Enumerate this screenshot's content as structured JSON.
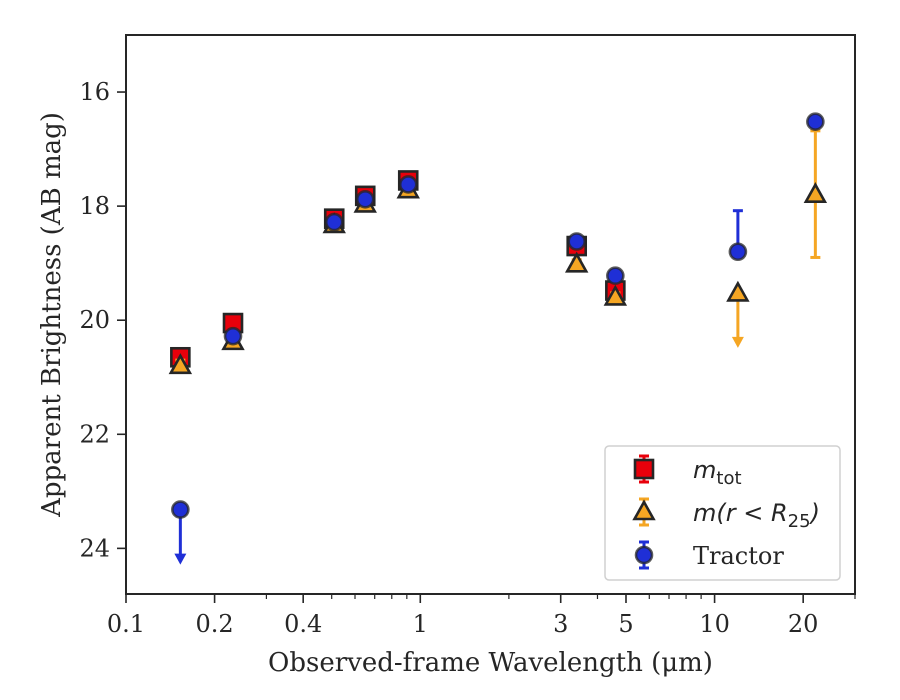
{
  "chart_data": {
    "type": "scatter",
    "title": "",
    "xlabel": "Observed-frame Wavelength (μm)",
    "ylabel": "Apparent Brightness (AB mag)",
    "xscale": "log",
    "xlim": [
      0.1,
      30
    ],
    "ylim": [
      24.8,
      15
    ],
    "y_inverted": true,
    "x_ticks": [
      0.1,
      0.2,
      0.4,
      1,
      3,
      5,
      10,
      20
    ],
    "x_tick_labels": [
      "0.1",
      "0.2",
      "0.4",
      "1",
      "3",
      "5",
      "10",
      "20"
    ],
    "y_ticks": [
      16,
      18,
      20,
      22,
      24
    ],
    "y_tick_labels": [
      "16",
      "18",
      "20",
      "22",
      "24"
    ],
    "grid": false,
    "legend_position": "bottom-right",
    "series": [
      {
        "name": "m_tot",
        "legend_label": "m",
        "legend_sub": "tot",
        "marker": "square",
        "color": "#e8000b",
        "points": [
          {
            "x": 0.153,
            "y": 20.65,
            "yerr": 0.1
          },
          {
            "x": 0.231,
            "y": 20.05,
            "yerr": 0.1
          },
          {
            "x": 0.51,
            "y": 18.22,
            "yerr": 0.08
          },
          {
            "x": 0.65,
            "y": 17.82,
            "yerr": 0.08
          },
          {
            "x": 0.91,
            "y": 17.55,
            "yerr": 0.08
          },
          {
            "x": 3.4,
            "y": 18.7,
            "yerr": 0.08
          },
          {
            "x": 4.6,
            "y": 19.48,
            "yerr": 0.08
          }
        ]
      },
      {
        "name": "m(r < R25)",
        "legend_label": "m(r < R",
        "legend_sub": "25",
        "legend_suffix": ")",
        "marker": "triangle",
        "color": "#f5a623",
        "points": [
          {
            "x": 0.153,
            "y": 20.8,
            "yerr": 0.1
          },
          {
            "x": 0.231,
            "y": 20.38,
            "yerr": 0.08
          },
          {
            "x": 0.51,
            "y": 18.33,
            "yerr": 0.08
          },
          {
            "x": 0.65,
            "y": 17.97,
            "yerr": 0.08
          },
          {
            "x": 0.91,
            "y": 17.72,
            "yerr": 0.08
          },
          {
            "x": 3.4,
            "y": 19.02,
            "yerr": 0.08
          },
          {
            "x": 4.6,
            "y": 19.6,
            "yerr": 0.08
          },
          {
            "x": 12.0,
            "y": 19.53,
            "upper_limit": true,
            "arrow_to": 20.45
          },
          {
            "x": 22.0,
            "y": 17.8,
            "yerr_low": 1.1,
            "yerr_high": 1.12
          }
        ]
      },
      {
        "name": "Tractor",
        "legend_label": "Tractor",
        "marker": "circle",
        "color": "#1f2fd6",
        "points": [
          {
            "x": 0.153,
            "y": 23.32,
            "upper_limit": true,
            "arrow_to": 24.25
          },
          {
            "x": 0.231,
            "y": 20.28,
            "yerr": 0.05
          },
          {
            "x": 0.51,
            "y": 18.28,
            "yerr": 0.05
          },
          {
            "x": 0.65,
            "y": 17.88,
            "yerr": 0.05
          },
          {
            "x": 0.91,
            "y": 17.62,
            "yerr": 0.05
          },
          {
            "x": 3.4,
            "y": 18.62,
            "yerr": 0.05
          },
          {
            "x": 4.6,
            "y": 19.22,
            "yerr": 0.05
          },
          {
            "x": 12.0,
            "y": 18.8,
            "yerr_low": 0,
            "yerr_high": 0.72
          },
          {
            "x": 22.0,
            "y": 16.52,
            "yerr": 0.08
          }
        ]
      }
    ]
  }
}
